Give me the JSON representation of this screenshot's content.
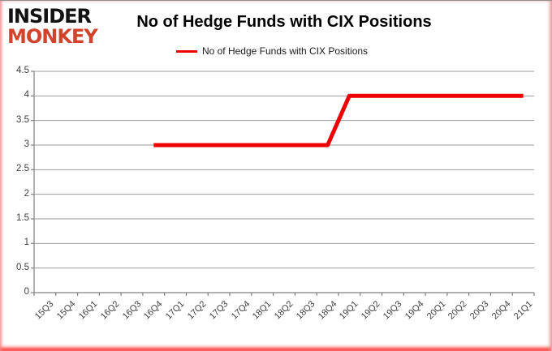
{
  "logo": {
    "line1": "INSIDER",
    "line2": "MONKEY"
  },
  "title": "No of Hedge Funds with CIX Positions",
  "legend": {
    "label": "No of Hedge Funds with CIX Positions"
  },
  "colors": {
    "series_red": "#ee0000",
    "logo_red": "#d2432c",
    "grid": "#9b9b9b",
    "axis": "#808080",
    "tick_text": "#3f3f3f"
  },
  "chart_data": {
    "type": "line",
    "title": "No of Hedge Funds with CIX Positions",
    "xlabel": "",
    "ylabel": "",
    "categories": [
      "15Q3",
      "15Q4",
      "16Q1",
      "16Q2",
      "16Q3",
      "16Q4",
      "17Q1",
      "17Q2",
      "17Q3",
      "17Q4",
      "18Q1",
      "18Q2",
      "18Q3",
      "18Q4",
      "19Q1",
      "19Q2",
      "19Q3",
      "19Q4",
      "20Q1",
      "20Q2",
      "20Q3",
      "20Q4",
      "21Q1"
    ],
    "series": [
      {
        "name": "No of Hedge Funds with CIX Positions",
        "color": "#ee0000",
        "line_width": 5,
        "values": [
          null,
          null,
          null,
          null,
          null,
          3,
          3,
          3,
          3,
          3,
          3,
          3,
          3,
          3,
          4,
          4,
          4,
          4,
          4,
          4,
          4,
          4,
          4
        ]
      }
    ],
    "ylim": [
      0,
      4.5
    ],
    "ytick_step": 0.5,
    "yticks": [
      0,
      0.5,
      1,
      1.5,
      2,
      2.5,
      3,
      3.5,
      4,
      4.5
    ],
    "grid": "horizontal",
    "legend_position": "top-center",
    "x_label_rotation": -45
  }
}
